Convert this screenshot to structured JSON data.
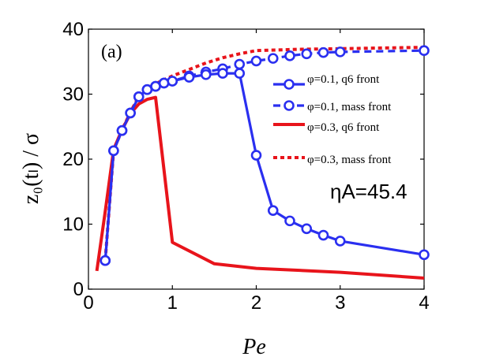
{
  "chart_data": {
    "type": "line",
    "panel_label": "(a)",
    "xlabel": "Pe",
    "ylabel": "z₀(tₗ) / σ",
    "xlim": [
      0,
      4
    ],
    "ylim": [
      0,
      40
    ],
    "xticks": [
      "0",
      "1",
      "2",
      "3",
      "4"
    ],
    "yticks": [
      "0",
      "10",
      "20",
      "30",
      "40"
    ],
    "annotation": "ηA=45.4",
    "series": [
      {
        "name": "φ=0.1, q6 front",
        "color": "#2a2ff0",
        "style": "solid",
        "marker": "circle",
        "x": [
          0.2,
          0.3,
          0.4,
          0.5,
          0.6,
          0.7,
          0.8,
          0.9,
          1.0,
          1.2,
          1.4,
          1.6,
          1.8,
          2.0,
          2.2,
          2.4,
          2.6,
          2.8,
          3.0,
          4.0
        ],
        "y": [
          4.4,
          21.3,
          24.4,
          27.1,
          29.6,
          30.7,
          31.2,
          31.7,
          32.0,
          32.6,
          33.0,
          33.2,
          33.2,
          20.6,
          12.1,
          10.5,
          9.3,
          8.3,
          7.4,
          5.3
        ]
      },
      {
        "name": "φ=0.1, mass front",
        "color": "#2a2ff0",
        "style": "dashed",
        "marker": "circle",
        "x": [
          0.2,
          0.3,
          0.4,
          0.5,
          0.6,
          0.7,
          0.8,
          0.9,
          1.0,
          1.2,
          1.4,
          1.6,
          1.8,
          2.0,
          2.2,
          2.4,
          2.6,
          2.8,
          3.0,
          4.0
        ],
        "y": [
          4.4,
          21.3,
          24.4,
          27.1,
          29.6,
          30.7,
          31.2,
          31.7,
          32.0,
          32.8,
          33.4,
          33.9,
          34.6,
          35.1,
          35.5,
          35.9,
          36.2,
          36.4,
          36.5,
          36.7
        ]
      },
      {
        "name": "φ=0.3, q6 front",
        "color": "#e8141b",
        "style": "solid",
        "marker": "none",
        "x": [
          0.1,
          0.2,
          0.3,
          0.4,
          0.5,
          0.6,
          0.7,
          0.8,
          1.0,
          1.5,
          2.0,
          3.0,
          4.0
        ],
        "y": [
          2.8,
          12.0,
          21.5,
          24.5,
          27.0,
          28.5,
          29.2,
          29.5,
          7.2,
          3.9,
          3.2,
          2.6,
          1.7
        ]
      },
      {
        "name": "φ=0.3, mass front",
        "color": "#e8141b",
        "style": "dotted",
        "marker": "none",
        "x": [
          0.2,
          0.3,
          0.4,
          0.5,
          0.6,
          0.7,
          0.8,
          0.9,
          1.0,
          1.2,
          1.4,
          1.6,
          1.8,
          2.0,
          2.5,
          3.0,
          3.5,
          4.0
        ],
        "y": [
          4.5,
          21.4,
          24.5,
          27.2,
          29.7,
          30.9,
          31.6,
          32.2,
          32.8,
          33.8,
          34.8,
          35.6,
          36.2,
          36.7,
          36.9,
          37.0,
          37.1,
          37.2
        ]
      }
    ]
  }
}
